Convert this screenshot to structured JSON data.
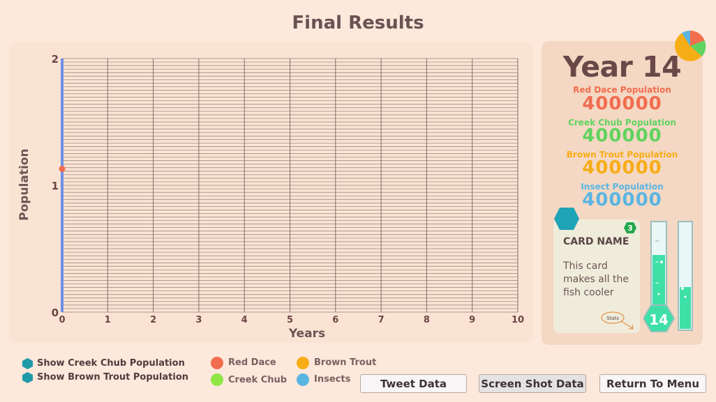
{
  "page": {
    "title": "Final Results"
  },
  "chart_data": {
    "type": "line",
    "ylabel": "Population",
    "xlabel": "Years",
    "xlim": [
      0,
      10
    ],
    "ylim": [
      0,
      2
    ],
    "x_ticks": [
      "0",
      "1",
      "2",
      "3",
      "4",
      "5",
      "6",
      "7",
      "8",
      "9",
      "10"
    ],
    "y_ticks": [
      "0",
      "1",
      "2"
    ],
    "grid": true,
    "series": [
      {
        "name": "Red Dace",
        "color": "#f26c4f",
        "x": [
          0
        ],
        "y": [
          1.13
        ]
      }
    ]
  },
  "stats": {
    "year_label": "Year 14",
    "populations": [
      {
        "label": "Red Dace Population",
        "value": "400000",
        "color": "#f26c4f"
      },
      {
        "label": "Creek Chub Population",
        "value": "400000",
        "color": "#5fd35f"
      },
      {
        "label": "Brown Trout Population",
        "value": "400000",
        "color": "#f7ad16"
      },
      {
        "label": "Insect Population",
        "value": "400000",
        "color": "#5ab5e3"
      }
    ]
  },
  "card": {
    "name": "CARD NAME",
    "description": "This card makes all the fish cooler",
    "cost": "3",
    "stats_label": "Stats"
  },
  "meter": {
    "value": "14"
  },
  "legend": [
    {
      "label": "Red Dace",
      "color": "#f26c4f"
    },
    {
      "label": "Brown Trout",
      "color": "#f7ad16"
    },
    {
      "label": "Creek Chub",
      "color": "#8ee645"
    },
    {
      "label": "Insects",
      "color": "#5ab5e3"
    }
  ],
  "toggles": [
    {
      "label": "Show Creek Chub Population"
    },
    {
      "label": "Show Brown Trout Population"
    }
  ],
  "buttons": {
    "tweet": "Tweet Data",
    "screenshot": "Screen Shot Data",
    "menu": "Return To Menu"
  }
}
